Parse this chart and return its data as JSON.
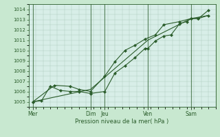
{
  "background_color": "#c8e8d0",
  "plot_bg_color": "#d8eee8",
  "grid_color": "#a8c8b8",
  "line_color": "#2a5c2a",
  "divider_color": "#2a5c2a",
  "xlabel": "Pression niveau de la mer( hPa )",
  "ylim": [
    1004.5,
    1014.5
  ],
  "yticks": [
    1005,
    1006,
    1007,
    1008,
    1009,
    1010,
    1011,
    1012,
    1013,
    1014
  ],
  "xlim": [
    0,
    13.0
  ],
  "day_labels": [
    "Mer",
    "",
    "",
    "",
    "Dim",
    "Jeu",
    "",
    "",
    "Ven",
    "",
    "",
    "Sam"
  ],
  "day_tick_positions": [
    0.3,
    4.3,
    5.3,
    8.3,
    11.3
  ],
  "day_tick_labels": [
    "Mer",
    "Dim",
    "Jeu",
    "Ven",
    "Sam"
  ],
  "day_dividers": [
    0.3,
    4.3,
    5.3,
    8.3,
    11.3
  ],
  "series1_x": [
    0.3,
    0.9,
    1.5,
    2.2,
    2.9,
    3.5,
    4.3,
    5.3,
    6.0,
    6.7,
    7.4,
    8.1,
    8.3,
    8.8,
    9.4,
    9.9,
    10.5,
    11.0,
    11.3,
    11.8,
    12.5
  ],
  "series1_y": [
    1005.0,
    1005.1,
    1006.5,
    1006.1,
    1006.0,
    1006.0,
    1005.8,
    1006.0,
    1007.8,
    1008.5,
    1009.3,
    1010.2,
    1010.2,
    1010.9,
    1011.4,
    1011.5,
    1012.6,
    1012.8,
    1013.1,
    1013.1,
    1013.4
  ],
  "series2_x": [
    0.3,
    1.8,
    2.9,
    3.5,
    4.3,
    5.3,
    6.0,
    6.7,
    7.4,
    8.1,
    8.8,
    9.4,
    10.5,
    11.3,
    11.8,
    12.5
  ],
  "series2_y": [
    1005.0,
    1006.6,
    1006.5,
    1006.2,
    1006.0,
    1007.5,
    1008.9,
    1010.0,
    1010.5,
    1011.1,
    1011.5,
    1012.5,
    1012.8,
    1013.1,
    1013.1,
    1013.9
  ],
  "series3_x": [
    0.3,
    4.3,
    8.3,
    11.3,
    12.5
  ],
  "series3_y": [
    1005.0,
    1006.2,
    1011.0,
    1013.1,
    1013.4
  ]
}
